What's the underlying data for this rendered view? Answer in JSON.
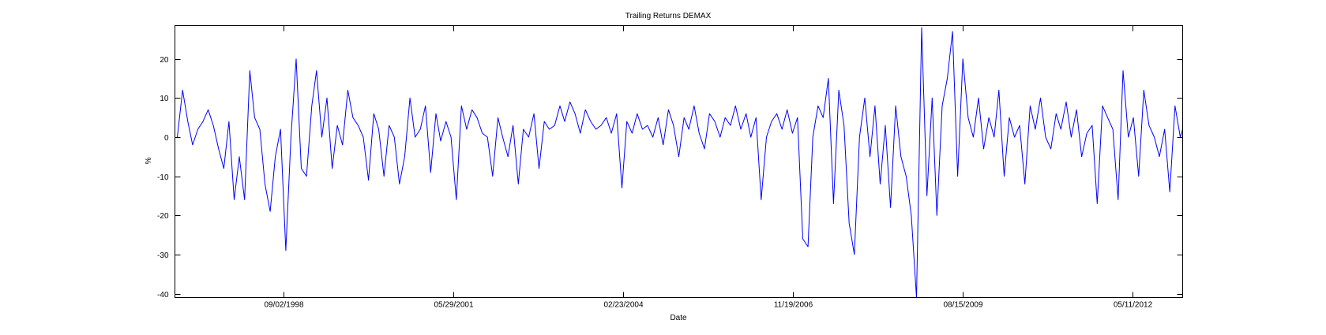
{
  "chart_data": {
    "type": "line",
    "title": "Trailing Returns DEMAX",
    "xlabel": "Date",
    "ylabel": "%",
    "x_tick_labels": [
      "09/02/1998",
      "05/29/2001",
      "02/23/2004",
      "11/19/2006",
      "08/15/2009",
      "05/11/2012"
    ],
    "y_tick_labels": [
      "20",
      "10",
      "0",
      "-10",
      "-20",
      "-30",
      "-40"
    ],
    "ylim": [
      -41,
      28.5
    ],
    "xlim": [
      "1996-12-01",
      "2013-03-01"
    ],
    "grid": false,
    "line_color": "#0000ff",
    "series": [
      {
        "x": [
          "1996-12",
          "1997-01",
          "1997-02",
          "1997-03",
          "1997-04",
          "1997-05",
          "1997-06",
          "1997-07",
          "1997-08",
          "1997-09",
          "1997-10",
          "1997-11",
          "1997-12",
          "1998-01",
          "1998-02",
          "1998-03",
          "1998-04",
          "1998-05",
          "1998-06",
          "1998-07",
          "1998-08",
          "1998-09",
          "1998-10",
          "1998-11",
          "1998-12",
          "1999-01",
          "1999-02",
          "1999-03",
          "1999-04",
          "1999-05",
          "1999-06",
          "1999-07",
          "1999-08",
          "1999-09",
          "1999-10",
          "1999-11",
          "1999-12",
          "2000-01",
          "2000-02",
          "2000-03",
          "2000-04",
          "2000-05",
          "2000-06",
          "2000-07",
          "2000-08",
          "2000-09",
          "2000-10",
          "2000-11",
          "2000-12",
          "2001-01",
          "2001-02",
          "2001-03",
          "2001-04",
          "2001-05",
          "2001-06",
          "2001-07",
          "2001-08",
          "2001-09",
          "2001-10",
          "2001-11",
          "2001-12",
          "2002-01",
          "2002-02",
          "2002-03",
          "2002-04",
          "2002-05",
          "2002-06",
          "2002-07",
          "2002-08",
          "2002-09",
          "2002-10",
          "2002-11",
          "2002-12",
          "2003-01",
          "2003-02",
          "2003-03",
          "2003-04",
          "2003-05",
          "2003-06",
          "2003-07",
          "2003-08",
          "2003-09",
          "2003-10",
          "2003-11",
          "2003-12",
          "2004-01",
          "2004-02",
          "2004-03",
          "2004-04",
          "2004-05",
          "2004-06",
          "2004-07",
          "2004-08",
          "2004-09",
          "2004-10",
          "2004-11",
          "2004-12",
          "2005-01",
          "2005-02",
          "2005-03",
          "2005-04",
          "2005-05",
          "2005-06",
          "2005-07",
          "2005-08",
          "2005-09",
          "2005-10",
          "2005-11",
          "2005-12",
          "2006-01",
          "2006-02",
          "2006-03",
          "2006-04",
          "2006-05",
          "2006-06",
          "2006-07",
          "2006-08",
          "2006-09",
          "2006-10",
          "2006-11",
          "2006-12",
          "2007-01",
          "2007-02",
          "2007-03",
          "2007-04",
          "2007-05",
          "2007-06",
          "2007-07",
          "2007-08",
          "2007-09",
          "2007-10",
          "2007-11",
          "2007-12",
          "2008-01",
          "2008-02",
          "2008-03",
          "2008-04",
          "2008-05",
          "2008-06",
          "2008-07",
          "2008-08",
          "2008-09",
          "2008-10",
          "2008-11",
          "2008-12",
          "2009-01",
          "2009-02",
          "2009-03",
          "2009-04",
          "2009-05",
          "2009-06",
          "2009-07",
          "2009-08",
          "2009-09",
          "2009-10",
          "2009-11",
          "2009-12",
          "2010-01",
          "2010-02",
          "2010-03",
          "2010-04",
          "2010-05",
          "2010-06",
          "2010-07",
          "2010-08",
          "2010-09",
          "2010-10",
          "2010-11",
          "2010-12",
          "2011-01",
          "2011-02",
          "2011-03",
          "2011-04",
          "2011-05",
          "2011-06",
          "2011-07",
          "2011-08",
          "2011-09",
          "2011-10",
          "2011-11",
          "2011-12",
          "2012-01",
          "2012-02",
          "2012-03",
          "2012-04",
          "2012-05",
          "2012-06",
          "2012-07",
          "2012-08",
          "2012-09",
          "2012-10",
          "2012-11",
          "2012-12",
          "2013-01",
          "2013-02",
          "2013-03"
        ],
        "values": [
          0,
          12,
          4,
          -2,
          2,
          4,
          7,
          3,
          -3,
          -8,
          4,
          -16,
          -5,
          -16,
          17,
          5,
          2,
          -12,
          -19,
          -5,
          2,
          -29,
          0,
          20,
          -8,
          -10,
          8,
          17,
          0,
          10,
          -8,
          3,
          -2,
          12,
          5,
          3,
          0,
          -11,
          6,
          2,
          -10,
          3,
          0,
          -12,
          -5,
          10,
          0,
          2,
          8,
          -9,
          6,
          -1,
          4,
          0,
          -16,
          8,
          2,
          7,
          5,
          1,
          0,
          -10,
          5,
          0,
          -5,
          3,
          -12,
          2,
          0,
          6,
          -8,
          4,
          2,
          3,
          8,
          4,
          9,
          6,
          1,
          7,
          4,
          2,
          3,
          5,
          1,
          6,
          -13,
          4,
          1,
          6,
          2,
          3,
          0,
          5,
          -2,
          7,
          3,
          -5,
          5,
          2,
          8,
          1,
          -3,
          6,
          4,
          0,
          5,
          3,
          8,
          2,
          6,
          0,
          5,
          -16,
          0,
          4,
          6,
          2,
          7,
          1,
          5,
          -26,
          -28,
          0,
          8,
          5,
          15,
          -17,
          12,
          3,
          -22,
          -30,
          0,
          10,
          -5,
          8,
          -12,
          3,
          -18,
          8,
          -5,
          -10,
          -20,
          -41,
          28,
          -15,
          10,
          -20,
          8,
          15,
          27,
          -10,
          20,
          5,
          0,
          10,
          -3,
          5,
          0,
          12,
          -10,
          5,
          0,
          3,
          -12,
          8,
          2,
          10,
          0,
          -3,
          6,
          2,
          9,
          0,
          7,
          -5,
          1,
          3,
          -17,
          8,
          5,
          2,
          -16,
          17,
          0,
          5,
          -10,
          12,
          3,
          0,
          -5,
          2,
          -14,
          8,
          0,
          4
        ]
      }
    ]
  }
}
